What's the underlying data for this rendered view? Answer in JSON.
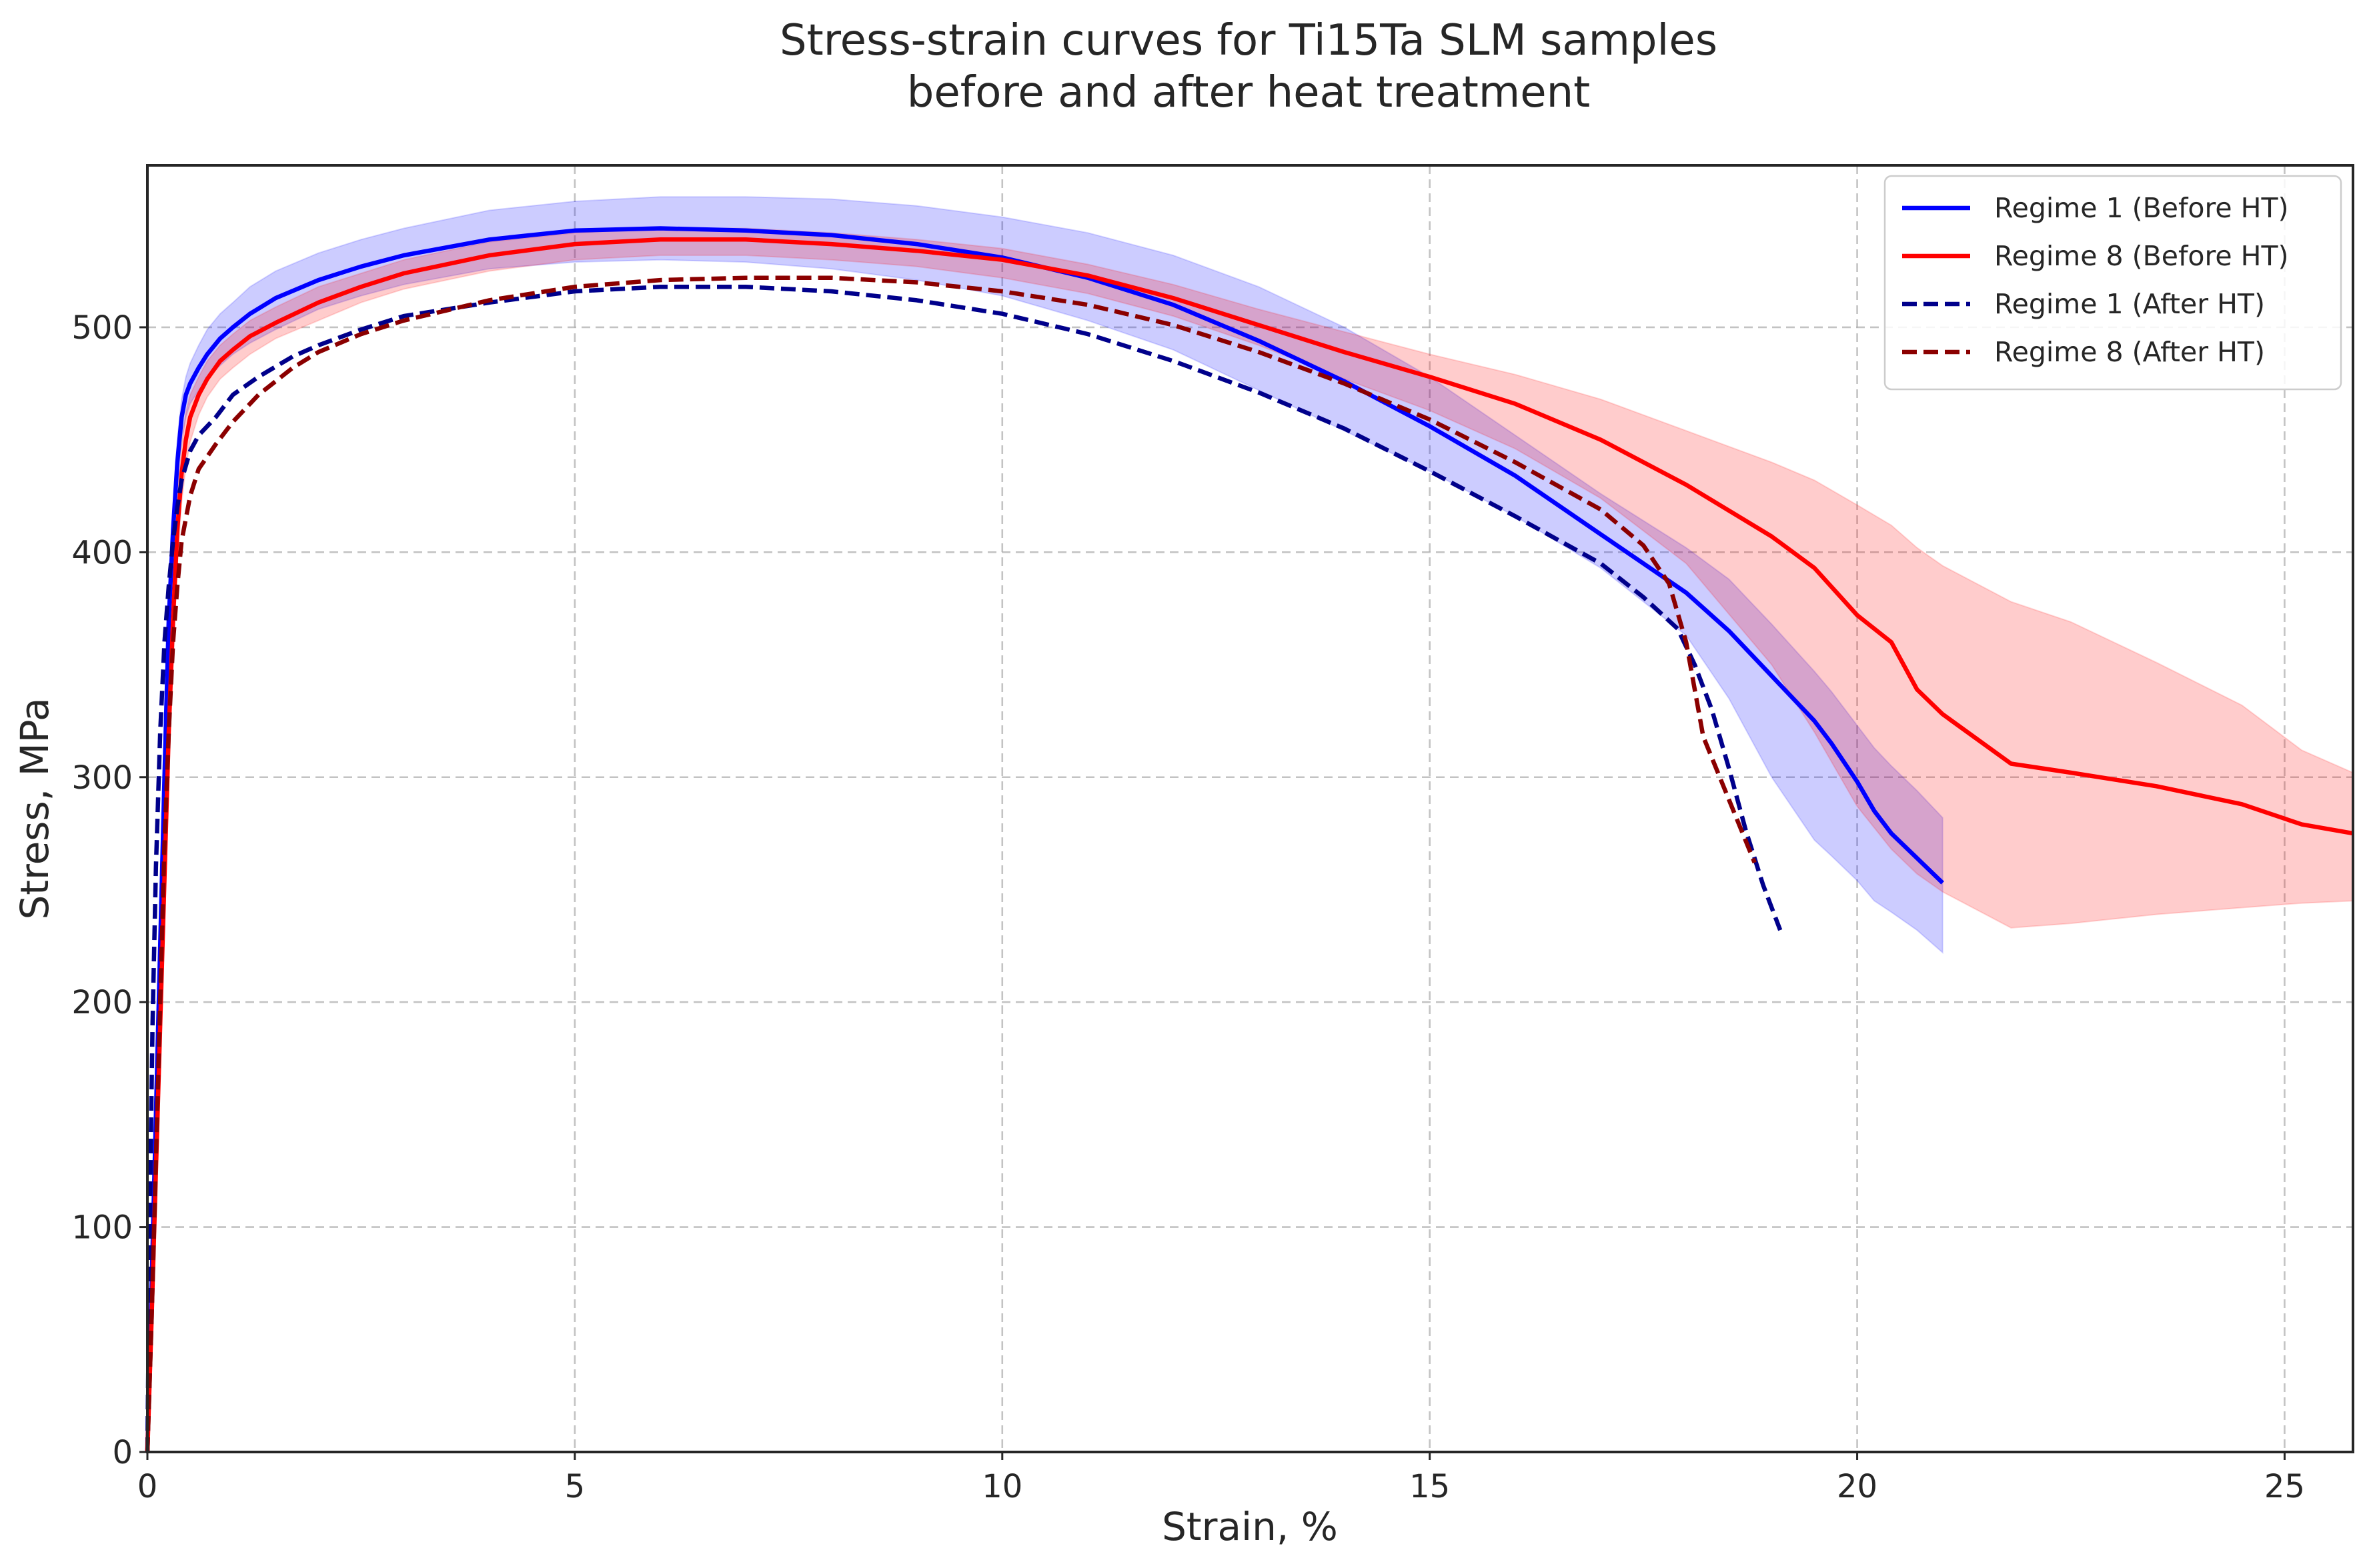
{
  "chart_data": {
    "type": "line",
    "title": [
      "Stress-strain curves for Ti15Ta SLM samples",
      "before and after heat treatment"
    ],
    "xlabel": "Strain, %",
    "ylabel": "Stress, MPa",
    "xlim": [
      0,
      25.8
    ],
    "ylim": [
      0,
      572
    ],
    "xticks": [
      0,
      5,
      10,
      15,
      20,
      25
    ],
    "yticks": [
      0,
      100,
      200,
      300,
      400,
      500
    ],
    "grid": true,
    "legend_position": "top-right",
    "series": [
      {
        "name": "Regime 1 (Before HT)",
        "color": "#0000ff",
        "style": "solid",
        "x": [
          0,
          0.05,
          0.1,
          0.15,
          0.2,
          0.25,
          0.3,
          0.35,
          0.4,
          0.45,
          0.5,
          0.6,
          0.7,
          0.85,
          1.0,
          1.2,
          1.5,
          2,
          2.5,
          3,
          4,
          5,
          6,
          7,
          8,
          9,
          10,
          11,
          12,
          13,
          14,
          15,
          16,
          17,
          18,
          18.5,
          19,
          19.5,
          19.7,
          20,
          20.2,
          20.4,
          20.7,
          21.0
        ],
        "y": [
          0,
          75,
          150,
          225,
          300,
          370,
          410,
          440,
          460,
          470,
          475,
          482,
          488,
          495,
          500,
          506,
          513,
          521,
          527,
          532,
          539,
          543,
          544,
          543,
          541,
          537,
          531,
          522,
          510,
          494,
          476,
          456,
          434,
          408,
          382,
          365,
          345,
          325,
          315,
          298,
          285,
          275,
          264,
          253
        ],
        "band_upper": [
          0,
          80,
          160,
          240,
          310,
          380,
          420,
          450,
          468,
          478,
          484,
          492,
          499,
          506,
          511,
          518,
          525,
          533,
          539,
          544,
          552,
          556,
          558,
          558,
          557,
          554,
          549,
          542,
          532,
          518,
          500,
          478,
          452,
          426,
          402,
          388,
          368,
          347,
          338,
          323,
          313,
          305,
          294,
          282
        ],
        "band_lower": [
          0,
          70,
          140,
          210,
          290,
          360,
          400,
          430,
          450,
          460,
          466,
          472,
          477,
          483,
          488,
          493,
          499,
          508,
          514,
          519,
          526,
          529,
          530,
          529,
          526,
          521,
          514,
          503,
          490,
          472,
          454,
          436,
          416,
          393,
          363,
          335,
          300,
          272,
          265,
          254,
          245,
          240,
          232,
          222
        ]
      },
      {
        "name": "Regime 8 (Before HT)",
        "color": "#ff0000",
        "style": "solid",
        "x": [
          0,
          0.05,
          0.1,
          0.15,
          0.2,
          0.25,
          0.3,
          0.35,
          0.4,
          0.45,
          0.5,
          0.6,
          0.7,
          0.85,
          1.0,
          1.2,
          1.5,
          2,
          2.5,
          3,
          4,
          5,
          6,
          7,
          8,
          9,
          10,
          11,
          12,
          13,
          14,
          15,
          16,
          17,
          18,
          19,
          19.5,
          20,
          20.4,
          20.7,
          21,
          21.8,
          22.5,
          23.5,
          24.5,
          25.2,
          25.8
        ],
        "y": [
          0,
          60,
          125,
          190,
          255,
          320,
          370,
          410,
          435,
          450,
          460,
          470,
          477,
          485,
          490,
          496,
          502,
          511,
          518,
          524,
          532,
          537,
          539,
          539,
          537,
          534,
          530,
          523,
          513,
          501,
          489,
          478,
          466,
          450,
          430,
          407,
          393,
          372,
          360,
          339,
          328,
          306,
          302,
          296,
          288,
          279,
          275
        ],
        "band_upper": [
          0,
          64,
          132,
          200,
          268,
          335,
          388,
          425,
          448,
          462,
          470,
          478,
          485,
          492,
          497,
          503,
          509,
          518,
          524,
          530,
          538,
          542,
          544,
          544,
          542,
          539,
          535,
          528,
          519,
          508,
          498,
          488,
          479,
          468,
          454,
          440,
          432,
          421,
          412,
          402,
          394,
          378,
          369,
          351,
          332,
          312,
          302
        ],
        "band_lower": [
          0,
          56,
          118,
          180,
          242,
          305,
          352,
          395,
          422,
          438,
          449,
          461,
          469,
          477,
          482,
          488,
          495,
          503,
          511,
          517,
          525,
          530,
          532,
          532,
          530,
          527,
          522,
          515,
          505,
          492,
          477,
          463,
          446,
          424,
          395,
          350,
          320,
          287,
          268,
          257,
          249,
          233,
          235,
          239,
          242,
          244,
          245
        ]
      },
      {
        "name": "Regime 1 (After HT)",
        "color": "#00008b",
        "style": "dashed",
        "x": [
          0,
          0.03,
          0.06,
          0.1,
          0.15,
          0.2,
          0.25,
          0.3,
          0.35,
          0.4,
          0.5,
          0.6,
          0.8,
          1.0,
          1.3,
          1.7,
          2,
          2.5,
          3,
          4,
          5,
          6,
          7,
          8,
          9,
          10,
          11,
          12,
          13,
          14,
          15,
          16,
          17,
          17.5,
          17.9,
          18.1,
          18.3,
          18.5,
          18.7,
          18.9,
          19.1
        ],
        "y": [
          0,
          110,
          190,
          260,
          320,
          360,
          385,
          405,
          420,
          432,
          445,
          452,
          460,
          470,
          478,
          487,
          492,
          499,
          505,
          511,
          516,
          518,
          518,
          516,
          512,
          506,
          497,
          485,
          471,
          455,
          436,
          416,
          395,
          380,
          366,
          350,
          330,
          304,
          276,
          252,
          232
        ]
      },
      {
        "name": "Regime 8 (After HT)",
        "color": "#8b0000",
        "style": "dashed",
        "x": [
          0,
          0.05,
          0.1,
          0.15,
          0.2,
          0.25,
          0.3,
          0.35,
          0.4,
          0.5,
          0.6,
          0.8,
          1.0,
          1.3,
          1.7,
          2,
          2.5,
          3,
          4,
          5,
          6,
          7,
          8,
          9,
          10,
          11,
          12,
          13,
          14,
          15,
          16,
          17,
          17.5,
          17.8,
          18.0,
          18.2,
          18.5,
          18.8
        ],
        "y": [
          0,
          60,
          130,
          200,
          270,
          320,
          360,
          385,
          405,
          425,
          437,
          448,
          458,
          470,
          482,
          489,
          497,
          503,
          512,
          518,
          521,
          522,
          522,
          520,
          516,
          510,
          501,
          489,
          475,
          459,
          440,
          419,
          403,
          386,
          360,
          318,
          290,
          262
        ]
      }
    ]
  }
}
